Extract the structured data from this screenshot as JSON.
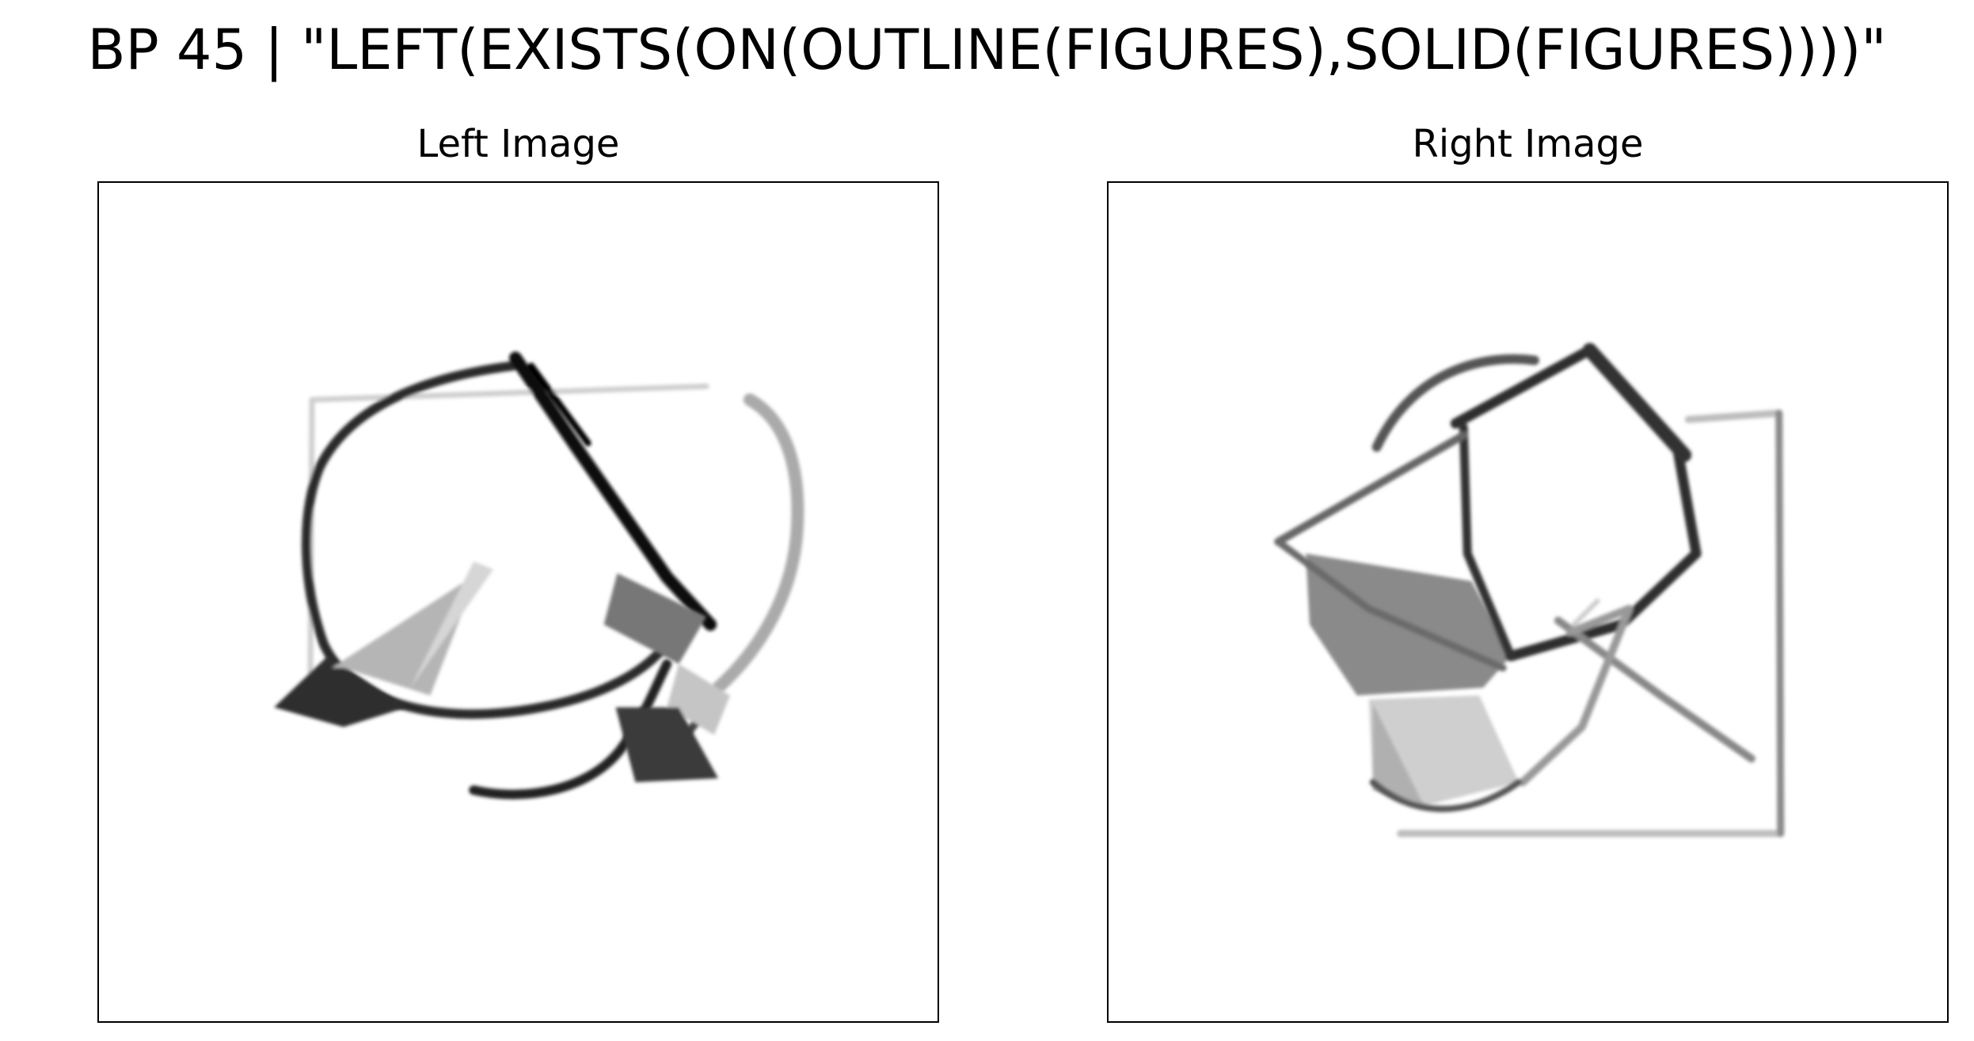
{
  "figure": {
    "title": "BP 45 | \"LEFT(EXISTS(ON(OUTLINE(FIGURES),SOLID(FIGURES))))\""
  },
  "panels": {
    "left": {
      "title": "Left Image",
      "image": "left-sketch"
    },
    "right": {
      "title": "Right Image",
      "image": "right-sketch"
    }
  },
  "colors": {
    "background": "#ffffff",
    "frame": "#000000",
    "ink_dark": "#1a1a1a",
    "ink_mid": "#555555",
    "ink_light": "#9a9a9a"
  }
}
